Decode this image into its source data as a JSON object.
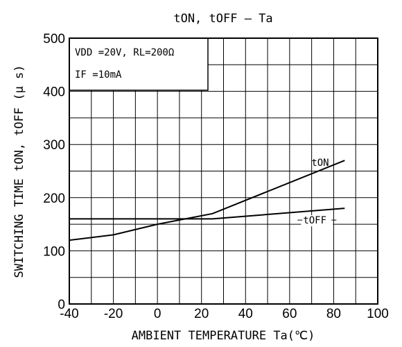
{
  "chart_data": {
    "type": "line",
    "title": "tON, tOFF  – Ta",
    "xlabel": "AMBIENT TEMPERATURE  Ta(℃)",
    "ylabel": "SWITCHING TIME  tON, tOFF (μ s)",
    "xlim": [
      -40,
      100
    ],
    "ylim": [
      0,
      500
    ],
    "xticks": [
      -40,
      -20,
      0,
      20,
      40,
      60,
      80,
      100
    ],
    "yticks": [
      0,
      100,
      200,
      300,
      400,
      500
    ],
    "xtick_labels": [
      "-40",
      "-20",
      "0",
      "20",
      "40",
      "60",
      "80",
      "100"
    ],
    "ytick_labels": [
      "0",
      "100",
      "200",
      "300",
      "400",
      "500"
    ],
    "x_minor_step": 10,
    "y_minor_step": 50,
    "grid": true,
    "conditions": {
      "line1": "VDD =20V,  RL=200Ω",
      "line2": "IF =10mA"
    },
    "series": [
      {
        "name": "tON",
        "x": [
          -40,
          -20,
          0,
          25,
          85
        ],
        "y": [
          120,
          130,
          150,
          170,
          270
        ]
      },
      {
        "name": "tOFF",
        "x": [
          -40,
          25,
          85
        ],
        "y": [
          160,
          160,
          180
        ]
      }
    ]
  }
}
